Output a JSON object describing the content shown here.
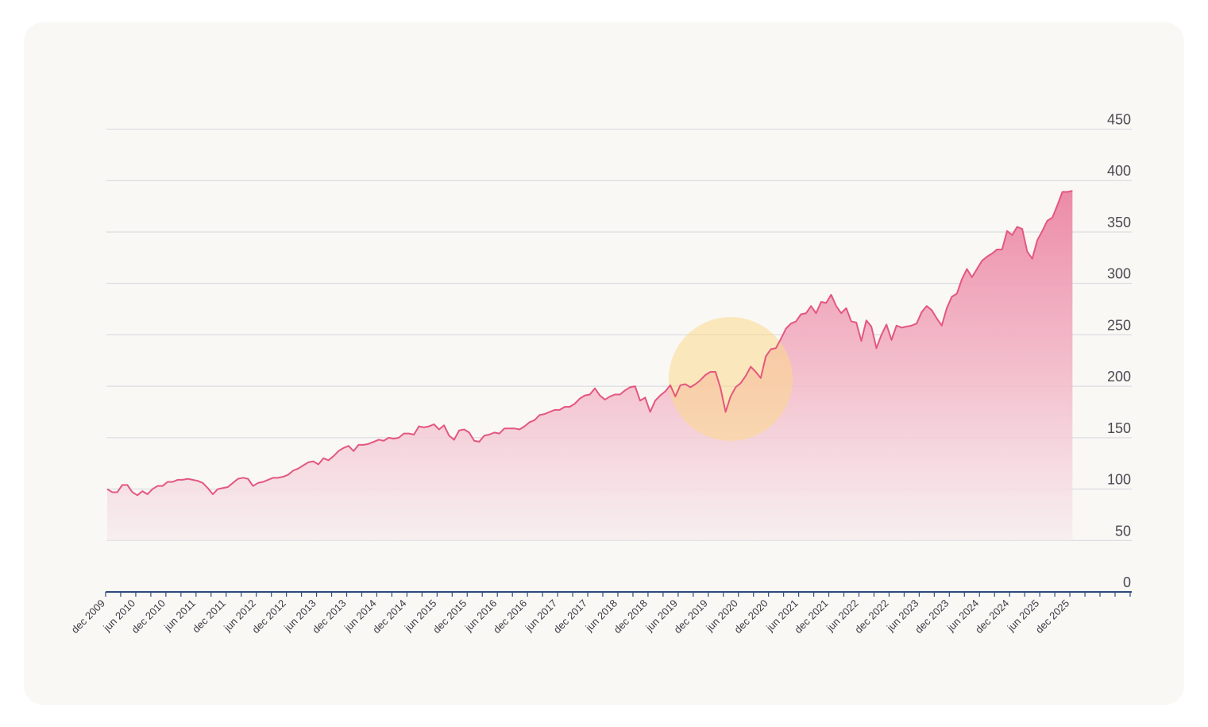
{
  "chart_data": {
    "type": "area",
    "title": "",
    "xlabel": "",
    "ylabel": "",
    "ylim": [
      0,
      450
    ],
    "y_ticks": [
      0,
      50,
      100,
      150,
      200,
      250,
      300,
      350,
      400,
      450
    ],
    "x_tick_labels": [
      "dec 2009",
      "jun 2010",
      "dec 2010",
      "jun 2011",
      "dec 2011",
      "jun 2012",
      "dec 2012",
      "jun 2013",
      "dec 2013",
      "jun 2014",
      "dec 2014",
      "jun 2015",
      "dec 2015",
      "jun 2016",
      "dec 2016",
      "jun 2017",
      "dec 2017",
      "jun 2018",
      "dec 2018",
      "jun 2019",
      "dec 2019",
      "jun 2020",
      "dec 2020",
      "jun 2021",
      "dec 2021",
      "jun 2022",
      "dec 2022",
      "jun 2023",
      "dec 2023",
      "jun 2024",
      "dec 2024",
      "jun 2025",
      "dec 2025"
    ],
    "grid": true,
    "colors": {
      "line": "#e4577f",
      "fill_top": "#ec8ba8",
      "fill_bottom": "#f6eaec",
      "highlight": "#fbd98a",
      "axis": "#2d4a7c",
      "grid": "#d6d6dc"
    },
    "annotation": {
      "type": "highlight-circle",
      "center_x": "apr 2020",
      "center_y": 207,
      "radius_months": 4
    },
    "series": [
      {
        "start": "dec 2009",
        "frequency": "monthly",
        "values": [
          100,
          97,
          97,
          104,
          104,
          97,
          94,
          98,
          95,
          100,
          103,
          103,
          107,
          107,
          109,
          109,
          110,
          109,
          108,
          106,
          101,
          95,
          100,
          101,
          102,
          106,
          110,
          111,
          110,
          103,
          106,
          107,
          109,
          111,
          111,
          112,
          114,
          118,
          120,
          123,
          126,
          127,
          124,
          130,
          128,
          132,
          137,
          140,
          142,
          137,
          143,
          143,
          144,
          146,
          148,
          147,
          150,
          149,
          150,
          154,
          154,
          153,
          161,
          160,
          161,
          163,
          158,
          162,
          152,
          148,
          157,
          158,
          155,
          147,
          146,
          152,
          153,
          155,
          154,
          159,
          159,
          159,
          158,
          161,
          165,
          167,
          172,
          173,
          175,
          177,
          177,
          180,
          180,
          183,
          188,
          191,
          192,
          198,
          191,
          187,
          190,
          192,
          192,
          196,
          199,
          200,
          186,
          189,
          175,
          186,
          191,
          195,
          201,
          190,
          201,
          202,
          199,
          202,
          206,
          211,
          214,
          214,
          198,
          175,
          190,
          199,
          203,
          210,
          219,
          214,
          208,
          229,
          236,
          237,
          246,
          256,
          261,
          263,
          270,
          271,
          278,
          271,
          282,
          281,
          289,
          278,
          271,
          276,
          263,
          262,
          244,
          264,
          258,
          237,
          250,
          260,
          245,
          259,
          257,
          258,
          259,
          261,
          272,
          278,
          274,
          266,
          259,
          276,
          287,
          290,
          304,
          314,
          306,
          314,
          322,
          326,
          329,
          333,
          333,
          351,
          347,
          355,
          353,
          331,
          324,
          342,
          351,
          361,
          364,
          376,
          389,
          389,
          390
        ]
      }
    ]
  }
}
